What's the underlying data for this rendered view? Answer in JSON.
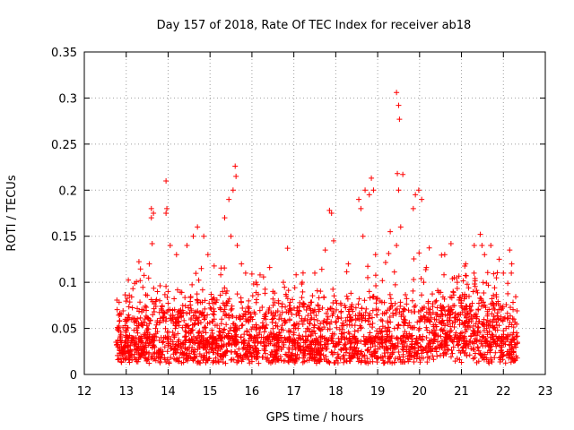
{
  "chart_data": {
    "type": "scatter",
    "title": "Day 157 of 2018, Rate Of TEC Index for receiver ab18",
    "xlabel": "GPS time / hours",
    "ylabel": "ROTI / TECUs",
    "xlim": [
      12,
      23
    ],
    "ylim": [
      0,
      0.35
    ],
    "xticks": [
      12,
      13,
      14,
      15,
      16,
      17,
      18,
      19,
      20,
      21,
      22,
      23
    ],
    "yticks": [
      0,
      0.05,
      0.1,
      0.15,
      0.2,
      0.25,
      0.3,
      0.35
    ],
    "xtick_labels": [
      "12",
      "13",
      "14",
      "15",
      "16",
      "17",
      "18",
      "19",
      "20",
      "21",
      "22",
      "23"
    ],
    "ytick_labels": [
      "0",
      "0.05",
      "0.1",
      "0.15",
      "0.2",
      "0.25",
      "0.3",
      "0.35"
    ],
    "grid": true,
    "marker": "+",
    "color": "#ff0000",
    "series": [
      {
        "name": "ROTI",
        "points": [
          [
            13.6,
            0.17
          ],
          [
            13.6,
            0.18
          ],
          [
            13.65,
            0.175
          ],
          [
            13.62,
            0.142
          ],
          [
            13.55,
            0.12
          ],
          [
            13.95,
            0.21
          ],
          [
            13.97,
            0.18
          ],
          [
            13.95,
            0.175
          ],
          [
            14.05,
            0.14
          ],
          [
            14.2,
            0.13
          ],
          [
            14.45,
            0.14
          ],
          [
            14.6,
            0.15
          ],
          [
            14.7,
            0.16
          ],
          [
            14.85,
            0.15
          ],
          [
            14.95,
            0.13
          ],
          [
            15.35,
            0.17
          ],
          [
            15.45,
            0.19
          ],
          [
            15.55,
            0.2
          ],
          [
            15.6,
            0.226
          ],
          [
            15.62,
            0.215
          ],
          [
            15.5,
            0.15
          ],
          [
            15.65,
            0.14
          ],
          [
            15.75,
            0.12
          ],
          [
            15.85,
            0.11
          ],
          [
            16.1,
            0.1
          ],
          [
            16.5,
            0.09
          ],
          [
            16.85,
            0.137
          ],
          [
            16.75,
            0.1
          ],
          [
            17.2,
            0.1
          ],
          [
            17.5,
            0.11
          ],
          [
            17.75,
            0.135
          ],
          [
            17.85,
            0.178
          ],
          [
            17.9,
            0.175
          ],
          [
            17.95,
            0.145
          ],
          [
            18.3,
            0.12
          ],
          [
            18.55,
            0.19
          ],
          [
            18.6,
            0.18
          ],
          [
            18.7,
            0.2
          ],
          [
            18.8,
            0.195
          ],
          [
            18.85,
            0.213
          ],
          [
            18.9,
            0.2
          ],
          [
            18.65,
            0.15
          ],
          [
            18.95,
            0.13
          ],
          [
            19.3,
            0.155
          ],
          [
            19.45,
            0.306
          ],
          [
            19.5,
            0.292
          ],
          [
            19.52,
            0.277
          ],
          [
            19.47,
            0.218
          ],
          [
            19.5,
            0.2
          ],
          [
            19.55,
            0.16
          ],
          [
            19.6,
            0.217
          ],
          [
            19.45,
            0.14
          ],
          [
            19.9,
            0.195
          ],
          [
            19.98,
            0.2
          ],
          [
            20.05,
            0.19
          ],
          [
            19.85,
            0.18
          ],
          [
            20.1,
            0.1
          ],
          [
            20.6,
            0.13
          ],
          [
            20.75,
            0.142
          ],
          [
            20.9,
            0.1
          ],
          [
            21.1,
            0.12
          ],
          [
            21.3,
            0.11
          ],
          [
            21.45,
            0.152
          ],
          [
            21.55,
            0.13
          ],
          [
            21.7,
            0.14
          ],
          [
            21.9,
            0.125
          ],
          [
            22.0,
            0.11
          ],
          [
            22.15,
            0.135
          ],
          [
            22.2,
            0.12
          ],
          [
            22.25,
            0.06
          ],
          [
            12.8,
            0.03
          ],
          [
            12.9,
            0.025
          ],
          [
            13.1,
            0.02
          ],
          [
            13.3,
            0.03
          ],
          [
            13.5,
            0.04
          ],
          [
            13.7,
            0.05
          ],
          [
            13.8,
            0.08
          ],
          [
            14.0,
            0.09
          ],
          [
            14.1,
            0.06
          ],
          [
            14.3,
            0.07
          ],
          [
            14.5,
            0.05
          ],
          [
            14.7,
            0.04
          ],
          [
            14.9,
            0.03
          ],
          [
            15.1,
            0.06
          ],
          [
            15.3,
            0.09
          ],
          [
            15.5,
            0.07
          ],
          [
            15.7,
            0.05
          ],
          [
            15.9,
            0.06
          ],
          [
            16.2,
            0.05
          ],
          [
            16.4,
            0.07
          ],
          [
            16.6,
            0.04
          ],
          [
            16.9,
            0.06
          ],
          [
            17.1,
            0.05
          ],
          [
            17.3,
            0.07
          ],
          [
            17.6,
            0.05
          ],
          [
            17.8,
            0.06
          ],
          [
            18.0,
            0.08
          ],
          [
            18.2,
            0.04
          ],
          [
            18.4,
            0.06
          ],
          [
            18.6,
            0.05
          ],
          [
            18.8,
            0.09
          ],
          [
            19.0,
            0.04
          ],
          [
            19.2,
            0.03
          ],
          [
            19.4,
            0.05
          ],
          [
            19.6,
            0.04
          ],
          [
            19.8,
            0.03
          ],
          [
            20.0,
            0.05
          ],
          [
            20.2,
            0.06
          ],
          [
            20.4,
            0.08
          ],
          [
            20.6,
            0.07
          ],
          [
            20.8,
            0.09
          ],
          [
            21.0,
            0.08
          ],
          [
            21.2,
            0.06
          ],
          [
            21.4,
            0.07
          ],
          [
            21.6,
            0.05
          ],
          [
            21.8,
            0.06
          ],
          [
            22.0,
            0.04
          ],
          [
            22.2,
            0.03
          ],
          [
            22.3,
            0.02
          ]
        ]
      }
    ]
  }
}
